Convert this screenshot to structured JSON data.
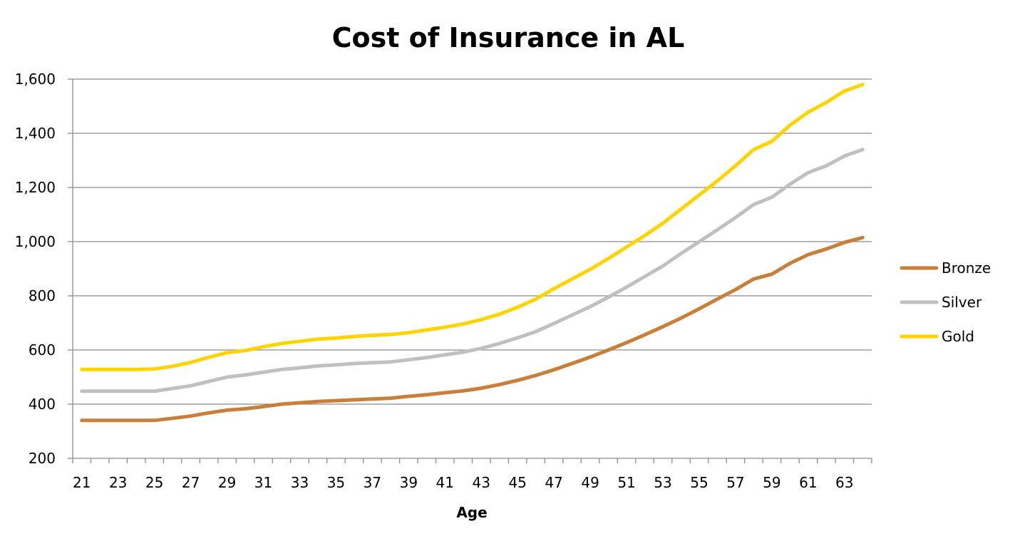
{
  "chart_data": {
    "type": "line",
    "title": "Cost of Insurance in AL",
    "xlabel": "Age",
    "ylabel": "",
    "ylim": [
      200,
      1600
    ],
    "yticks": [
      200,
      400,
      600,
      800,
      1000,
      1200,
      1400,
      1600
    ],
    "ytick_labels": [
      "200",
      "400",
      "600",
      "800",
      "1,000",
      "1,200",
      "1,400",
      "1,600"
    ],
    "x": [
      21,
      22,
      23,
      24,
      25,
      26,
      27,
      28,
      29,
      30,
      31,
      32,
      33,
      34,
      35,
      36,
      37,
      38,
      39,
      40,
      41,
      42,
      43,
      44,
      45,
      46,
      47,
      48,
      49,
      50,
      51,
      52,
      53,
      54,
      55,
      56,
      57,
      58,
      59,
      60,
      61,
      62,
      63,
      64
    ],
    "xtick_labels": [
      "21",
      "23",
      "25",
      "27",
      "29",
      "31",
      "33",
      "35",
      "37",
      "39",
      "41",
      "43",
      "45",
      "47",
      "49",
      "51",
      "53",
      "55",
      "57",
      "59",
      "61",
      "63"
    ],
    "grid": true,
    "legend_position": "right",
    "series": [
      {
        "name": "Bronze",
        "color": "#C87F39",
        "values": [
          340,
          340,
          340,
          340,
          340,
          348,
          356,
          368,
          378,
          383,
          391,
          400,
          405,
          410,
          413,
          416,
          419,
          422,
          429,
          435,
          442,
          449,
          459,
          472,
          488,
          506,
          527,
          550,
          574,
          600,
          627,
          656,
          686,
          718,
          752,
          788,
          823,
          862,
          880,
          920,
          952,
          973,
          997,
          1015
        ]
      },
      {
        "name": "Silver",
        "color": "#C0C0C0",
        "values": [
          448,
          448,
          448,
          448,
          448,
          458,
          468,
          484,
          500,
          508,
          518,
          528,
          534,
          541,
          545,
          550,
          553,
          556,
          564,
          572,
          582,
          592,
          606,
          624,
          645,
          668,
          698,
          729,
          760,
          795,
          832,
          871,
          910,
          956,
          1000,
          1044,
          1089,
          1137,
          1164,
          1212,
          1255,
          1280,
          1316,
          1340
        ]
      },
      {
        "name": "Gold",
        "color": "#FFD400",
        "values": [
          528,
          528,
          528,
          528,
          530,
          540,
          554,
          573,
          590,
          598,
          612,
          624,
          632,
          640,
          644,
          650,
          654,
          657,
          664,
          674,
          684,
          696,
          712,
          732,
          758,
          788,
          826,
          862,
          898,
          938,
          980,
          1022,
          1068,
          1120,
          1172,
          1224,
          1280,
          1340,
          1370,
          1430,
          1478,
          1514,
          1556,
          1580
        ]
      }
    ]
  }
}
